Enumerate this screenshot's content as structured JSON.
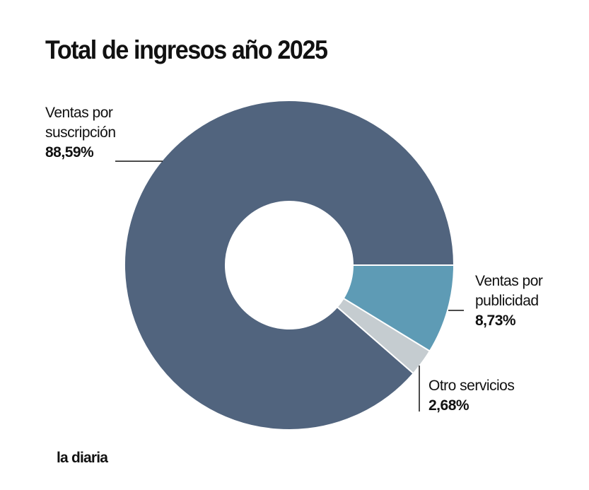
{
  "chart_data": {
    "type": "pie",
    "title": "Total de ingresos año 2025",
    "donut": true,
    "slices": [
      {
        "label": "Ventas por publicidad",
        "value": 8.73,
        "value_label": "8,73%",
        "color": "#5e9bb5"
      },
      {
        "label": "Otro servicios",
        "value": 2.68,
        "value_label": "2,68%",
        "color": "#c5ccd0"
      },
      {
        "label": "Ventas por suscripción",
        "value": 88.59,
        "value_label": "88,59%",
        "color": "#51647e"
      }
    ],
    "labels": {
      "suscripcion_line1": "Ventas por",
      "suscripcion_line2": "suscripción",
      "publicidad_line1": "Ventas por",
      "publicidad_line2": "publicidad",
      "otros_line1": "Otro servicios"
    }
  },
  "brand": "la diaria"
}
